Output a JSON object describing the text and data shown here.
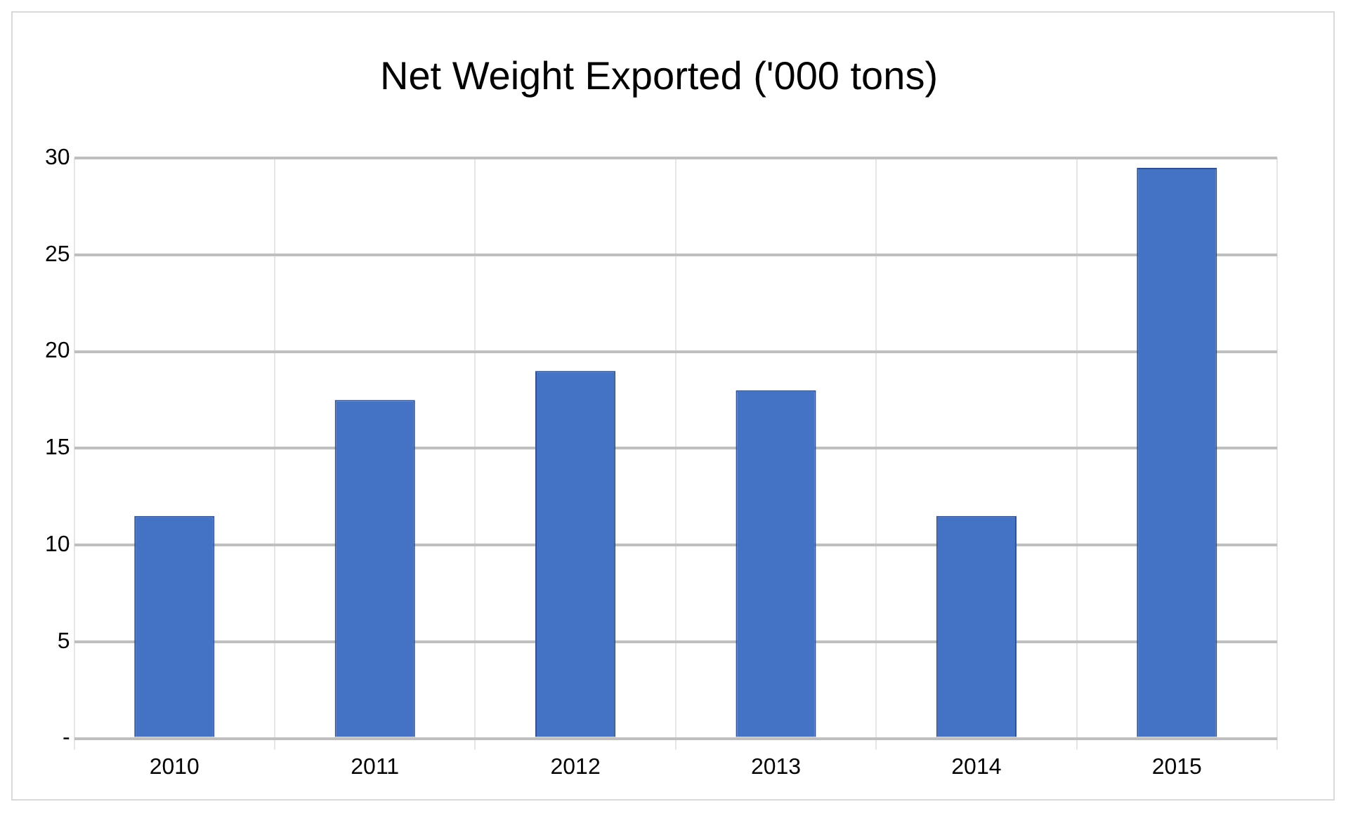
{
  "chart_data": {
    "type": "bar",
    "title": "Net Weight Exported ('000 tons)",
    "categories": [
      "2010",
      "2011",
      "2012",
      "2013",
      "2014",
      "2015"
    ],
    "values": [
      11.5,
      17.5,
      19,
      18,
      11.5,
      29.5
    ],
    "color": "#4472c4",
    "ylim": [
      0,
      30
    ],
    "yticks": [
      {
        "value": 0,
        "label": "-"
      },
      5,
      10,
      15,
      20,
      25,
      30
    ],
    "grid": true
  }
}
